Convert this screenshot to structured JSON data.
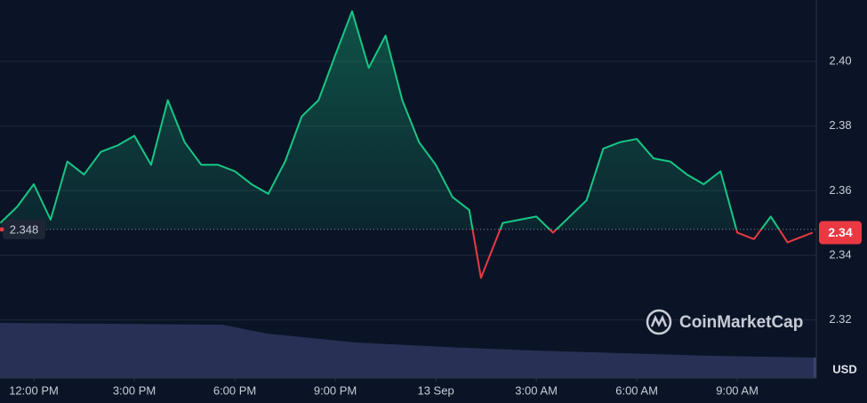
{
  "chart_data": {
    "type": "line",
    "x": [
      -1,
      -0.5,
      0,
      0.5,
      1,
      1.5,
      2,
      2.5,
      3,
      3.5,
      4,
      4.5,
      5,
      5.5,
      6,
      6.5,
      7,
      7.5,
      8,
      8.5,
      9,
      9.5,
      10,
      10.5,
      11,
      11.5,
      12,
      12.5,
      13,
      13.35,
      14,
      14.5,
      15,
      15.5,
      16,
      16.5,
      17,
      17.5,
      18,
      18.5,
      19,
      19.5,
      20,
      20.5,
      21,
      21.5,
      22,
      22.5,
      23,
      23.25
    ],
    "values": [
      2.35,
      2.355,
      2.362,
      2.351,
      2.369,
      2.365,
      2.372,
      2.374,
      2.377,
      2.368,
      2.388,
      2.375,
      2.368,
      2.368,
      2.366,
      2.362,
      2.359,
      2.369,
      2.383,
      2.388,
      2.402,
      2.4155,
      2.398,
      2.408,
      2.388,
      2.375,
      2.368,
      2.358,
      2.354,
      2.333,
      2.35,
      2.351,
      2.352,
      2.347,
      2.352,
      2.357,
      2.373,
      2.375,
      2.376,
      2.37,
      2.369,
      2.365,
      2.362,
      2.366,
      2.347,
      2.345,
      2.352,
      2.344,
      2.346,
      2.347
    ],
    "up_color": "#16c784",
    "down_color": "#ea3943",
    "reference": 2.348,
    "current_price": 2.34,
    "xlim": [
      -1.01,
      23.36
    ],
    "ylim": [
      2.302,
      2.419
    ],
    "xticks": [
      {
        "value": 0,
        "label": "12:00 PM"
      },
      {
        "value": 3,
        "label": "3:00 PM"
      },
      {
        "value": 6,
        "label": "6:00 PM"
      },
      {
        "value": 9,
        "label": "9:00 PM"
      },
      {
        "value": 12,
        "label": "13 Sep"
      },
      {
        "value": 15,
        "label": "3:00 AM"
      },
      {
        "value": 18,
        "label": "6:00 AM"
      },
      {
        "value": 21,
        "label": "9:00 AM"
      }
    ],
    "yticks": [
      2.32,
      2.34,
      2.36,
      2.38,
      {
        "value": 2.4,
        "label": "2.40"
      }
    ],
    "grid": true,
    "currency": "USD",
    "watermark": "CoinMarketCap"
  }
}
